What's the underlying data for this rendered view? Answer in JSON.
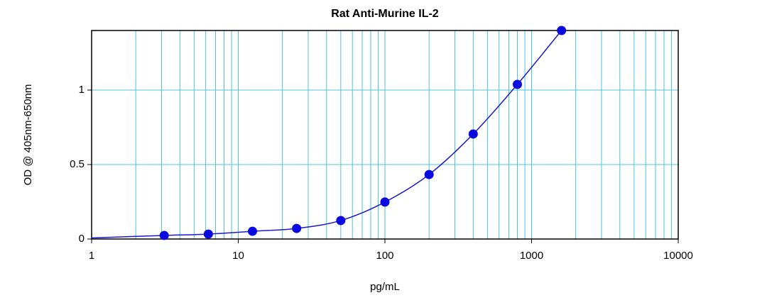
{
  "chart_data": {
    "type": "scatter",
    "title": "Rat Anti-Murine IL-2",
    "x_label": "pg/mL",
    "y_label": "OD @ 405nm-650nm",
    "x_log": true,
    "grid": true,
    "grid_color": "#4cc4dc",
    "xlim": [
      1,
      10000
    ],
    "xticks": [
      1,
      10,
      100,
      1000,
      10000
    ],
    "ylim": [
      0,
      1.4
    ],
    "yticks": [
      0,
      0.5,
      1
    ],
    "series": [
      {
        "mode": "line",
        "color": "#1a1acc",
        "x": [
          1,
          3.125,
          6.25,
          12.5,
          25,
          50,
          100,
          200,
          400,
          800,
          1600
        ],
        "values": [
          0.007,
          0.024,
          0.033,
          0.052,
          0.071,
          0.124,
          0.248,
          0.433,
          0.705,
          1.038,
          1.4
        ]
      },
      {
        "mode": "markers",
        "color": "#0a0ae0",
        "x": [
          3.125,
          6.25,
          12.5,
          25,
          50,
          100,
          200,
          400,
          800,
          1600
        ],
        "values": [
          0.024,
          0.033,
          0.052,
          0.071,
          0.124,
          0.248,
          0.433,
          0.705,
          1.038,
          1.4
        ]
      }
    ]
  }
}
